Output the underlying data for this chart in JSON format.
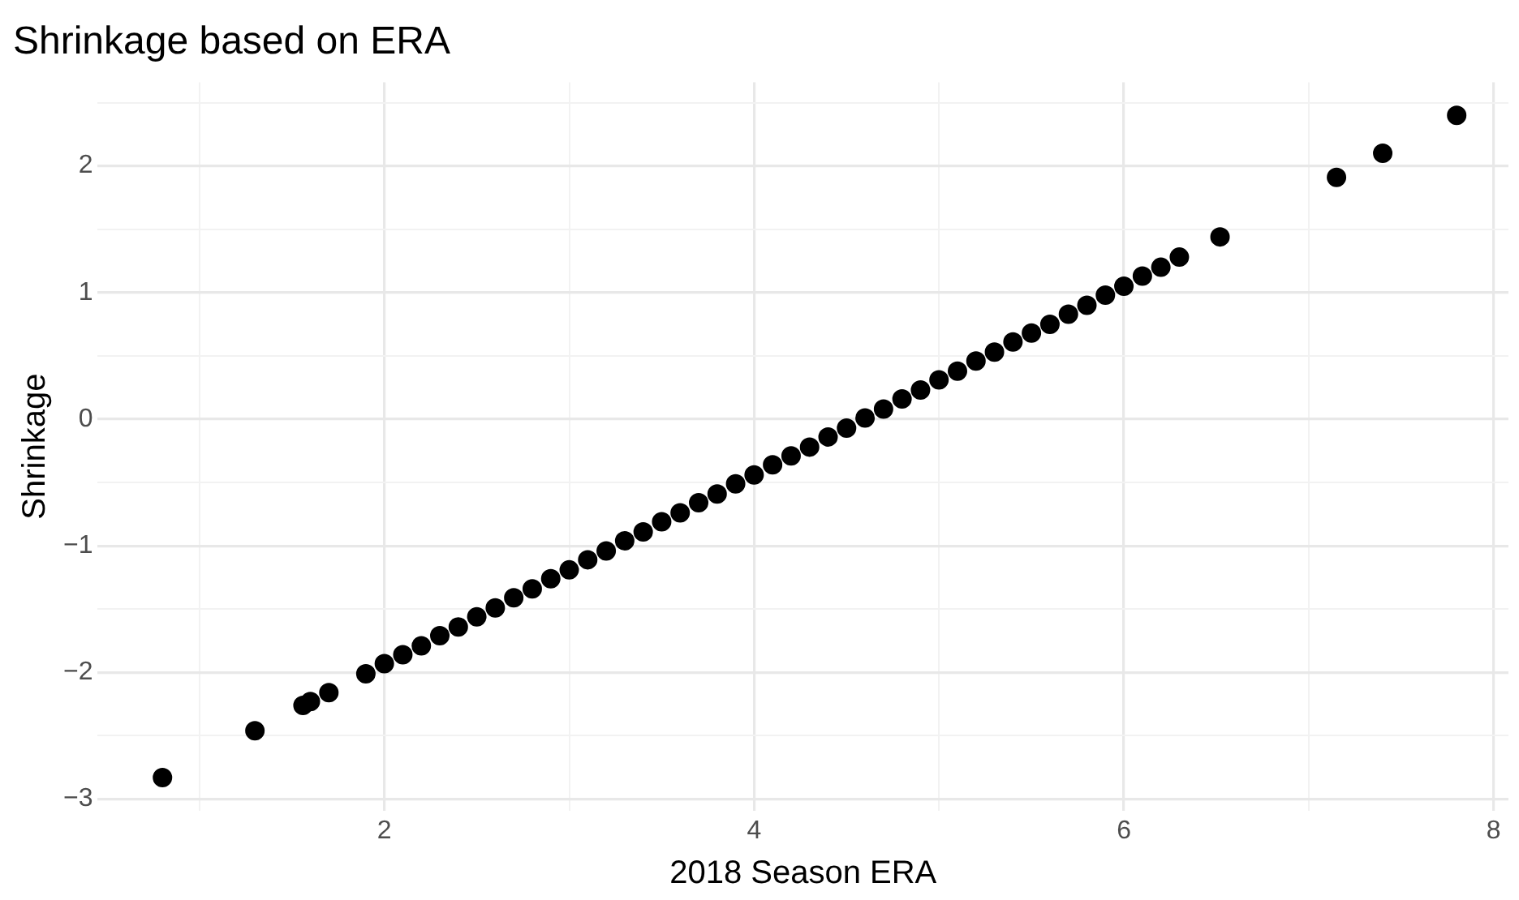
{
  "chart_data": {
    "type": "scatter",
    "title": "Shrinkage based on ERA",
    "xlabel": "2018 Season ERA",
    "ylabel": "Shrinkage",
    "x": [
      0.8,
      1.3,
      1.56,
      1.6,
      1.7,
      1.9,
      2.0,
      2.1,
      2.2,
      2.3,
      2.4,
      2.5,
      2.6,
      2.7,
      2.8,
      2.9,
      3.0,
      3.1,
      3.2,
      3.3,
      3.4,
      3.5,
      3.6,
      3.7,
      3.8,
      3.9,
      4.0,
      4.1,
      4.2,
      4.3,
      4.4,
      4.5,
      4.6,
      4.7,
      4.8,
      4.9,
      5.0,
      5.1,
      5.2,
      5.3,
      5.4,
      5.5,
      5.6,
      5.7,
      5.8,
      5.9,
      6.0,
      6.1,
      6.2,
      6.3,
      6.52,
      7.15,
      7.4,
      7.8
    ],
    "values": [
      -2.83,
      -2.46,
      -2.26,
      -2.23,
      -2.16,
      -2.01,
      -1.93,
      -1.86,
      -1.79,
      -1.71,
      -1.64,
      -1.56,
      -1.49,
      -1.41,
      -1.34,
      -1.26,
      -1.19,
      -1.11,
      -1.04,
      -0.96,
      -0.89,
      -0.81,
      -0.74,
      -0.66,
      -0.59,
      -0.51,
      -0.44,
      -0.36,
      -0.29,
      -0.22,
      -0.14,
      -0.07,
      0.01,
      0.08,
      0.16,
      0.23,
      0.31,
      0.38,
      0.46,
      0.53,
      0.61,
      0.68,
      0.75,
      0.83,
      0.9,
      0.98,
      1.05,
      1.13,
      1.2,
      1.28,
      1.44,
      1.91,
      2.1,
      2.4
    ],
    "color": "#000000",
    "marker": "circle",
    "grid": true,
    "legend": false,
    "xlim": [
      0.45,
      8.08
    ],
    "ylim": [
      -3.09,
      2.66
    ],
    "xticks": [
      {
        "value": 1,
        "label": null
      },
      2,
      {
        "value": 3,
        "label": null
      },
      4,
      {
        "value": 5,
        "label": null
      },
      6,
      {
        "value": 7,
        "label": null
      },
      8
    ],
    "yticks": [
      {
        "value": -3,
        "label": "−3"
      },
      {
        "value": -2.5,
        "label": null
      },
      {
        "value": -2,
        "label": "−2"
      },
      {
        "value": -1.5,
        "label": null
      },
      {
        "value": -1,
        "label": "−1"
      },
      {
        "value": -0.5,
        "label": null
      },
      0,
      {
        "value": 0.5,
        "label": null
      },
      1,
      {
        "value": 1.5,
        "label": null
      },
      2,
      {
        "value": 2.5,
        "label": null
      }
    ]
  }
}
